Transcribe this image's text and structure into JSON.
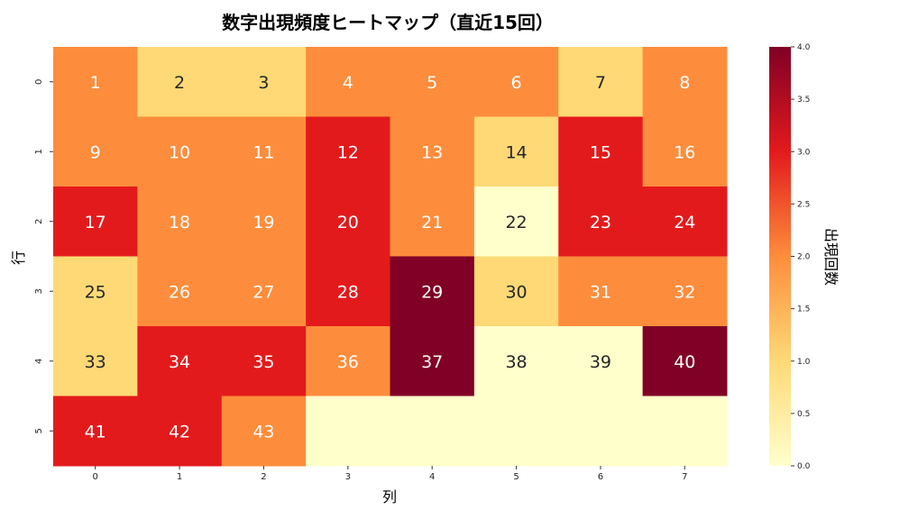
{
  "chart_data": {
    "type": "heatmap",
    "title": "数字出現頻度ヒートマップ（直近15回）",
    "xlabel": "列",
    "ylabel": "行",
    "colorbar_label": "出現回数",
    "x_ticks": [
      "0",
      "1",
      "2",
      "3",
      "4",
      "5",
      "6",
      "7"
    ],
    "y_ticks": [
      "0",
      "1",
      "2",
      "3",
      "4",
      "5"
    ],
    "colorbar_range": [
      0,
      4
    ],
    "colorbar_ticks": [
      "0.0",
      "0.5",
      "1.0",
      "1.5",
      "2.0",
      "2.5",
      "3.0",
      "3.5",
      "4.0"
    ],
    "colormap": "YlOrRd",
    "cells": [
      [
        {
          "label": "1",
          "value": 2
        },
        {
          "label": "2",
          "value": 1
        },
        {
          "label": "3",
          "value": 1
        },
        {
          "label": "4",
          "value": 2
        },
        {
          "label": "5",
          "value": 2
        },
        {
          "label": "6",
          "value": 2
        },
        {
          "label": "7",
          "value": 1
        },
        {
          "label": "8",
          "value": 2
        }
      ],
      [
        {
          "label": "9",
          "value": 2
        },
        {
          "label": "10",
          "value": 2
        },
        {
          "label": "11",
          "value": 2
        },
        {
          "label": "12",
          "value": 3
        },
        {
          "label": "13",
          "value": 2
        },
        {
          "label": "14",
          "value": 1
        },
        {
          "label": "15",
          "value": 3
        },
        {
          "label": "16",
          "value": 2
        }
      ],
      [
        {
          "label": "17",
          "value": 3
        },
        {
          "label": "18",
          "value": 2
        },
        {
          "label": "19",
          "value": 2
        },
        {
          "label": "20",
          "value": 3
        },
        {
          "label": "21",
          "value": 2
        },
        {
          "label": "22",
          "value": 0
        },
        {
          "label": "23",
          "value": 3
        },
        {
          "label": "24",
          "value": 3
        }
      ],
      [
        {
          "label": "25",
          "value": 1
        },
        {
          "label": "26",
          "value": 2
        },
        {
          "label": "27",
          "value": 2
        },
        {
          "label": "28",
          "value": 3
        },
        {
          "label": "29",
          "value": 4
        },
        {
          "label": "30",
          "value": 1
        },
        {
          "label": "31",
          "value": 2
        },
        {
          "label": "32",
          "value": 2
        }
      ],
      [
        {
          "label": "33",
          "value": 1
        },
        {
          "label": "34",
          "value": 3
        },
        {
          "label": "35",
          "value": 3
        },
        {
          "label": "36",
          "value": 2
        },
        {
          "label": "37",
          "value": 4
        },
        {
          "label": "38",
          "value": 0
        },
        {
          "label": "39",
          "value": 0
        },
        {
          "label": "40",
          "value": 4
        }
      ],
      [
        {
          "label": "41",
          "value": 3
        },
        {
          "label": "42",
          "value": 3
        },
        {
          "label": "43",
          "value": 2
        },
        {
          "label": "",
          "value": 0
        },
        {
          "label": "",
          "value": 0
        },
        {
          "label": "",
          "value": 0
        },
        {
          "label": "",
          "value": 0
        },
        {
          "label": "",
          "value": 0
        }
      ]
    ]
  }
}
